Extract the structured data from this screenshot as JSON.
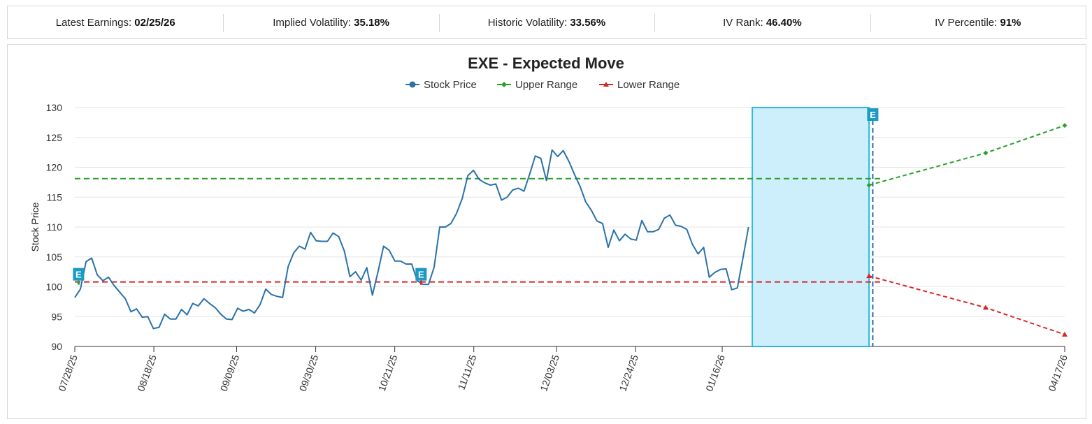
{
  "stats": {
    "earnings_label": "Latest Earnings:",
    "earnings_value": "02/25/26",
    "iv_label": "Implied Volatility:",
    "iv_value": "35.18%",
    "hv_label": "Historic Volatility:",
    "hv_value": "33.56%",
    "ivrank_label": "IV Rank:",
    "ivrank_value": "46.40%",
    "ivpct_label": "IV Percentile:",
    "ivpct_value": "91%"
  },
  "colors": {
    "stock": "#2a72a8",
    "upper": "#2ca02c",
    "lower": "#d62728",
    "earnings_marker": "#1b9bc4",
    "highlight_fill": "#cdeefb",
    "highlight_stroke": "#2bbbe0"
  },
  "chart_data": {
    "type": "line",
    "title": "EXE - Expected Move",
    "ylabel": "Stock Price",
    "xlabel": "",
    "ylim": [
      90,
      130
    ],
    "yticks": [
      90,
      95,
      100,
      105,
      110,
      115,
      120,
      125,
      130
    ],
    "xtick_labels": [
      "07/28/25",
      "08/18/25",
      "09/09/25",
      "09/30/25",
      "10/21/25",
      "11/11/25",
      "12/03/25",
      "12/24/25",
      "01/16/26",
      "04/17/26"
    ],
    "legend": [
      "Stock Price",
      "Upper Range",
      "Lower Range"
    ],
    "earnings_marker_label": "E",
    "stock_price": [
      98.2,
      99.6,
      104.2,
      104.8,
      102.0,
      101.0,
      101.6,
      100.2,
      99.1,
      98.0,
      95.8,
      96.3,
      94.9,
      95.0,
      93.0,
      93.2,
      95.4,
      94.6,
      94.6,
      96.2,
      95.3,
      97.2,
      96.8,
      98.0,
      97.2,
      96.5,
      95.4,
      94.6,
      94.5,
      96.4,
      95.9,
      96.2,
      95.6,
      97.0,
      99.6,
      98.7,
      98.4,
      98.2,
      103.4,
      105.7,
      106.8,
      106.3,
      109.1,
      107.7,
      107.6,
      107.6,
      109.0,
      108.4,
      106.0,
      101.7,
      102.5,
      101.1,
      103.2,
      98.6,
      102.5,
      106.8,
      106.1,
      104.3,
      104.3,
      103.8,
      103.8,
      101.0,
      100.4,
      100.4,
      103.3,
      110.0,
      110.0,
      110.6,
      112.3,
      114.8,
      118.6,
      119.5,
      118.0,
      117.4,
      117.0,
      117.2,
      114.5,
      115.0,
      116.2,
      116.5,
      116.0,
      118.8,
      121.9,
      121.5,
      117.8,
      122.9,
      121.8,
      122.8,
      121.0,
      118.8,
      116.8,
      114.2,
      112.8,
      111.0,
      110.6,
      106.6,
      109.5,
      107.7,
      108.8,
      108.0,
      107.8,
      111.1,
      109.2,
      109.2,
      109.6,
      111.5,
      112.0,
      110.3,
      110.1,
      109.6,
      107.1,
      105.5,
      106.6,
      101.6,
      102.4,
      102.9,
      103.0,
      99.5,
      99.8,
      104.8,
      110.0
    ],
    "stock_start_date": "07/28/25",
    "stock_end_date": "01/23/26",
    "upper_range_level": 118.1,
    "lower_range_level": 100.8,
    "upper_range": [
      {
        "date": "02/24/26",
        "value": 117.0
      },
      {
        "date": "03/27/26",
        "value": 122.4
      },
      {
        "date": "04/17/26",
        "value": 127.0
      }
    ],
    "lower_range": [
      {
        "date": "02/24/26",
        "value": 101.8
      },
      {
        "date": "03/27/26",
        "value": 96.5
      },
      {
        "date": "04/17/26",
        "value": 92.0
      }
    ],
    "earnings_dates": [
      "07/29/25",
      "10/28/25",
      "02/25/26"
    ],
    "highlight_range": {
      "start": "01/24/26",
      "end": "02/24/26",
      "ymin": 90,
      "ymax": 130
    }
  }
}
